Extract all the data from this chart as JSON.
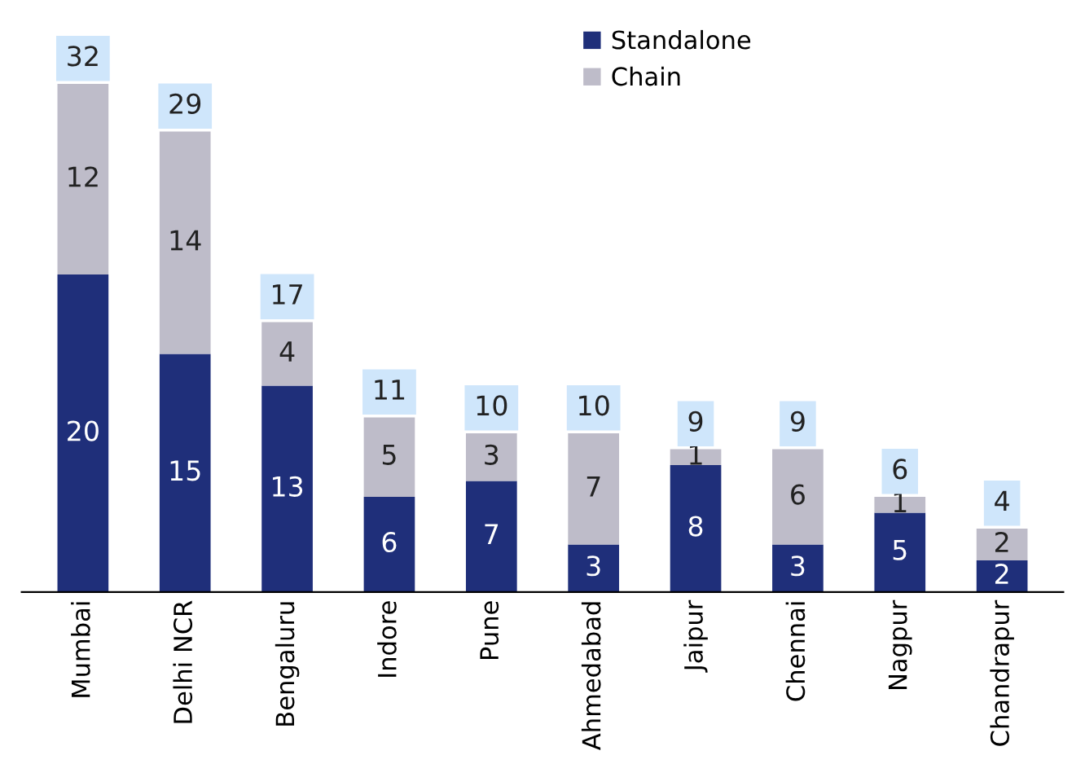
{
  "chart_data": {
    "type": "bar",
    "stacked": true,
    "categories": [
      "Mumbai",
      "Delhi NCR",
      "Bengaluru",
      "Indore",
      "Pune",
      "Ahmedabad",
      "Jaipur",
      "Chennai",
      "Nagpur",
      "Chandrapur"
    ],
    "series": [
      {
        "name": "Standalone",
        "color": "#1f2f7a",
        "values": [
          20,
          15,
          13,
          6,
          7,
          3,
          8,
          3,
          5,
          2
        ]
      },
      {
        "name": "Chain",
        "color": "#bebcc9",
        "values": [
          12,
          14,
          4,
          5,
          3,
          7,
          1,
          6,
          1,
          2
        ]
      }
    ],
    "totals": [
      "32",
      "29",
      "17",
      "11",
      "10",
      "10",
      "9",
      "9",
      "6",
      "4"
    ],
    "data_labels": true,
    "legend": "top",
    "grid": false,
    "tick_labels": "x"
  }
}
